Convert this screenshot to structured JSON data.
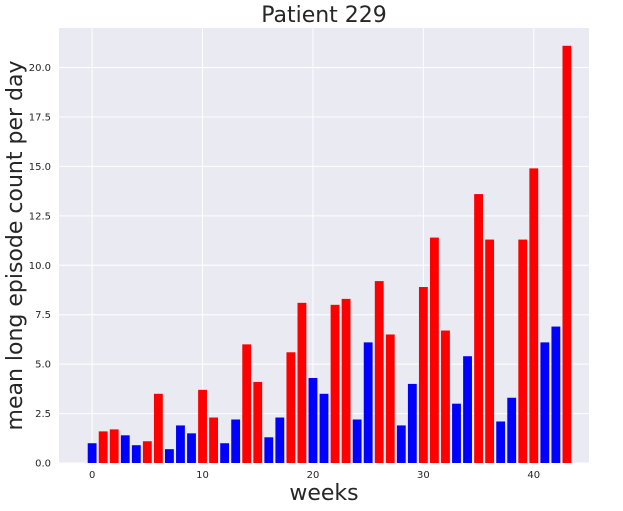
{
  "chart_data": {
    "type": "bar",
    "title": "Patient 229",
    "xlabel": "weeks",
    "ylabel": "mean long episode count per day",
    "xlim": [
      -3,
      45
    ],
    "ylim": [
      0,
      22
    ],
    "xticks": [
      0,
      10,
      20,
      30,
      40
    ],
    "yticks": [
      0.0,
      2.5,
      5.0,
      7.5,
      10.0,
      12.5,
      15.0,
      17.5,
      20.0
    ],
    "xtick_labels": [
      "0",
      "10",
      "20",
      "30",
      "40"
    ],
    "ytick_labels": [
      "0.0",
      "2.5",
      "5.0",
      "7.5",
      "10.0",
      "12.5",
      "15.0",
      "17.5",
      "20.0"
    ],
    "grid": true,
    "background": "#eaeaf2",
    "bar_width": 0.8,
    "colors": {
      "red": "#ff0000",
      "blue": "#0000ff"
    },
    "x": [
      0,
      1,
      2,
      3,
      4,
      5,
      6,
      7,
      8,
      9,
      10,
      11,
      12,
      13,
      14,
      15,
      16,
      17,
      18,
      19,
      20,
      21,
      22,
      23,
      24,
      25,
      26,
      27,
      28,
      29,
      30,
      31,
      32,
      33,
      34,
      35,
      36,
      37,
      38,
      39,
      40,
      41,
      42,
      43
    ],
    "values": [
      1.0,
      1.6,
      1.7,
      1.4,
      0.9,
      1.1,
      3.5,
      0.7,
      1.9,
      1.5,
      3.7,
      2.3,
      1.0,
      2.2,
      6.0,
      4.1,
      1.3,
      2.3,
      5.6,
      8.1,
      4.3,
      3.5,
      8.0,
      8.3,
      2.2,
      6.1,
      9.2,
      6.5,
      1.9,
      4.0,
      8.9,
      11.4,
      6.7,
      3.0,
      5.4,
      13.6,
      11.3,
      2.1,
      3.3,
      11.3,
      14.9,
      6.1,
      6.9,
      21.1
    ],
    "bar_colors": [
      "blue",
      "red",
      "red",
      "blue",
      "blue",
      "red",
      "red",
      "blue",
      "blue",
      "blue",
      "red",
      "red",
      "blue",
      "blue",
      "red",
      "red",
      "blue",
      "blue",
      "red",
      "red",
      "blue",
      "blue",
      "red",
      "red",
      "blue",
      "blue",
      "red",
      "red",
      "blue",
      "blue",
      "red",
      "red",
      "red",
      "blue",
      "blue",
      "red",
      "red",
      "blue",
      "blue",
      "red",
      "red",
      "blue",
      "blue",
      "red"
    ]
  }
}
